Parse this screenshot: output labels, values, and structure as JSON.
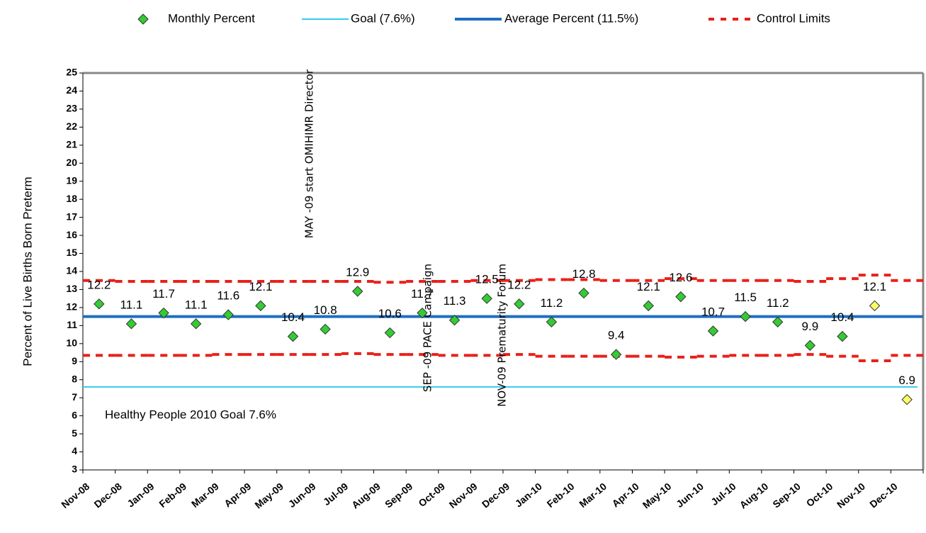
{
  "chart_data": {
    "type": "line",
    "y_label": "Percent of Live Births Born Preterm",
    "categories": [
      "Nov-08",
      "Dec-08",
      "Jan-09",
      "Feb-09",
      "Mar-09",
      "Apr-09",
      "May-09",
      "Jun-09",
      "Jul-09",
      "Aug-09",
      "Sep-09",
      "Oct-09",
      "Nov-09",
      "Dec-09",
      "Jan-10",
      "Feb-10",
      "Mar-10",
      "Apr-10",
      "May-10",
      "Jun-10",
      "Jul-10",
      "Aug-10",
      "Sep-10",
      "Oct-10",
      "Nov-10",
      "Dec-10"
    ],
    "series": [
      {
        "name": "Monthly Percent",
        "color": "#33cc33",
        "values": [
          12.2,
          11.1,
          11.7,
          11.1,
          11.6,
          12.1,
          10.4,
          10.8,
          12.9,
          10.6,
          11.7,
          11.3,
          12.5,
          12.2,
          11.2,
          12.8,
          9.4,
          12.1,
          12.6,
          10.7,
          11.5,
          11.2,
          9.9,
          10.4,
          12.1,
          6.9
        ],
        "point_colors": [
          "#33cc33",
          "#33cc33",
          "#33cc33",
          "#33cc33",
          "#33cc33",
          "#33cc33",
          "#33cc33",
          "#33cc33",
          "#33cc33",
          "#33cc33",
          "#33cc33",
          "#33cc33",
          "#33cc33",
          "#33cc33",
          "#33cc33",
          "#33cc33",
          "#33cc33",
          "#33cc33",
          "#33cc33",
          "#33cc33",
          "#33cc33",
          "#33cc33",
          "#33cc33",
          "#33cc33",
          "#ffff66",
          "#ffff66"
        ]
      },
      {
        "name": "Goal (7.6%)",
        "color": "#33ccee",
        "value": 7.6
      },
      {
        "name": "Average Percent (11.5%)",
        "color": "#1f6fbf",
        "value": 11.5
      },
      {
        "name": "Control Limits",
        "color": "#e8201a",
        "upper": [
          13.5,
          13.45,
          13.45,
          13.45,
          13.45,
          13.45,
          13.45,
          13.45,
          13.45,
          13.4,
          13.45,
          13.45,
          13.5,
          13.5,
          13.55,
          13.55,
          13.5,
          13.5,
          13.6,
          13.5,
          13.5,
          13.5,
          13.45,
          13.6,
          13.8,
          13.5
        ],
        "lower": [
          9.35,
          9.35,
          9.35,
          9.35,
          9.4,
          9.4,
          9.4,
          9.4,
          9.45,
          9.4,
          9.4,
          9.35,
          9.35,
          9.4,
          9.3,
          9.3,
          9.3,
          9.3,
          9.25,
          9.3,
          9.35,
          9.35,
          9.4,
          9.3,
          9.05,
          9.35
        ]
      }
    ],
    "annotations": [
      "MAY -09 start OMIHIMR Director",
      "SEP -09 PACE Campaign",
      "NOV-09 Prematurity Forum",
      "Healthy People 2010 Goal 7.6%"
    ],
    "ylim": [
      3,
      25
    ],
    "yticks": [
      3,
      4,
      5,
      6,
      7,
      8,
      9,
      10,
      11,
      12,
      13,
      14,
      15,
      16,
      17,
      18,
      19,
      20,
      21,
      22,
      23,
      24,
      25
    ]
  }
}
